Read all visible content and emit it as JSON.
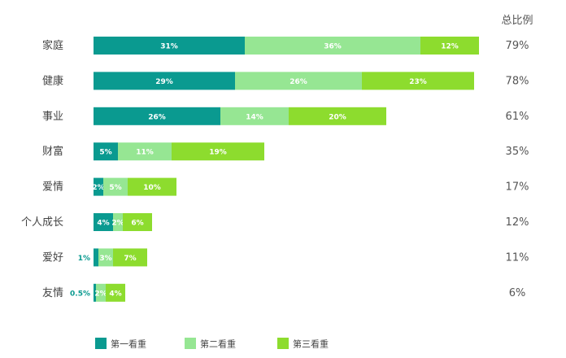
{
  "chart_data": {
    "type": "bar",
    "orientation": "horizontal",
    "stacked": true,
    "total_header": "总比例",
    "categories": [
      "家庭",
      "健康",
      "事业",
      "财富",
      "爱情",
      "个人成长",
      "爱好",
      "友情"
    ],
    "series": [
      {
        "name": "第一看重",
        "color": "#0a9a90",
        "values": [
          31,
          29,
          26,
          5,
          2,
          4,
          1,
          0.5
        ],
        "labels": [
          "31%",
          "29%",
          "26%",
          "5%",
          "2%",
          "4%",
          "1%",
          "0.5%"
        ]
      },
      {
        "name": "第二看重",
        "color": "#96e693",
        "values": [
          36,
          26,
          14,
          11,
          5,
          2,
          3,
          2
        ],
        "labels": [
          "36%",
          "26%",
          "14%",
          "11%",
          "5%",
          "2%",
          "3%",
          "2%"
        ]
      },
      {
        "name": "第三看重",
        "color": "#8ddc2e",
        "values": [
          12,
          23,
          20,
          19,
          10,
          6,
          7,
          4
        ],
        "labels": [
          "12%",
          "23%",
          "20%",
          "19%",
          "10%",
          "6%",
          "7%",
          "4%"
        ]
      }
    ],
    "totals": [
      "79%",
      "78%",
      "61%",
      "35%",
      "17%",
      "12%",
      "11%",
      "6%"
    ],
    "legend_position": "bottom-left",
    "grid": false
  }
}
